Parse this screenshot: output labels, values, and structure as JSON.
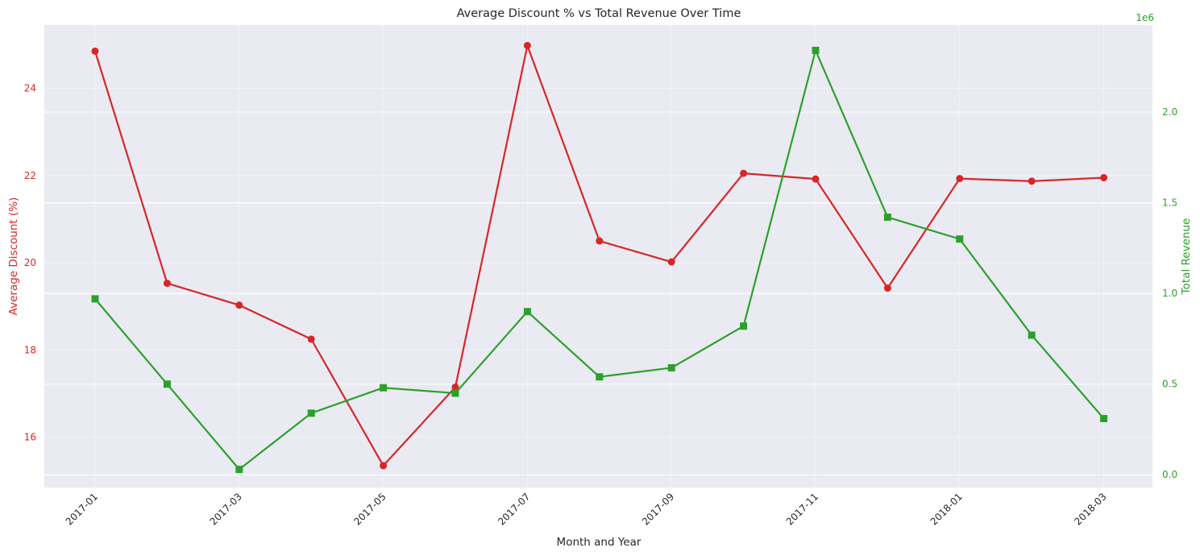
{
  "chart_data": {
    "type": "line",
    "title": "Average Discount % vs Total Revenue Over Time",
    "xlabel": "Month and Year",
    "ylabel_left": "Average Discount (%)",
    "ylabel_right": "Total Revenue",
    "right_axis_offset_label": "1e6",
    "x": [
      "2017-01",
      "2017-02",
      "2017-03",
      "2017-04",
      "2017-05",
      "2017-06",
      "2017-07",
      "2017-08",
      "2017-09",
      "2017-10",
      "2017-11",
      "2017-12",
      "2018-01",
      "2018-02",
      "2018-03"
    ],
    "x_tick_labels": [
      "2017-01",
      "2017-03",
      "2017-05",
      "2017-07",
      "2017-09",
      "2017-11",
      "2018-01",
      "2018-03"
    ],
    "y_left_ticks": [
      16,
      18,
      20,
      22,
      24
    ],
    "y_left_lim": [
      14.85,
      25.45
    ],
    "y_right_ticks": [
      "0.0",
      "0.5",
      "1.0",
      "1.5",
      "2.0"
    ],
    "y_right_lim": [
      -0.07,
      2.48
    ],
    "grid": true,
    "series": [
      {
        "axis": "left",
        "color": "#d62728",
        "marker": "circle",
        "values": [
          24.85,
          19.53,
          19.03,
          18.25,
          15.35,
          17.15,
          24.98,
          20.5,
          20.02,
          22.05,
          21.92,
          19.42,
          21.93,
          21.87,
          21.95
        ]
      },
      {
        "axis": "right",
        "color": "#2ca02c",
        "marker": "square",
        "values": [
          0.97,
          0.5,
          0.03,
          0.34,
          0.48,
          0.45,
          0.9,
          0.54,
          0.59,
          0.82,
          2.34,
          1.42,
          1.3,
          0.77,
          0.31
        ]
      }
    ]
  }
}
